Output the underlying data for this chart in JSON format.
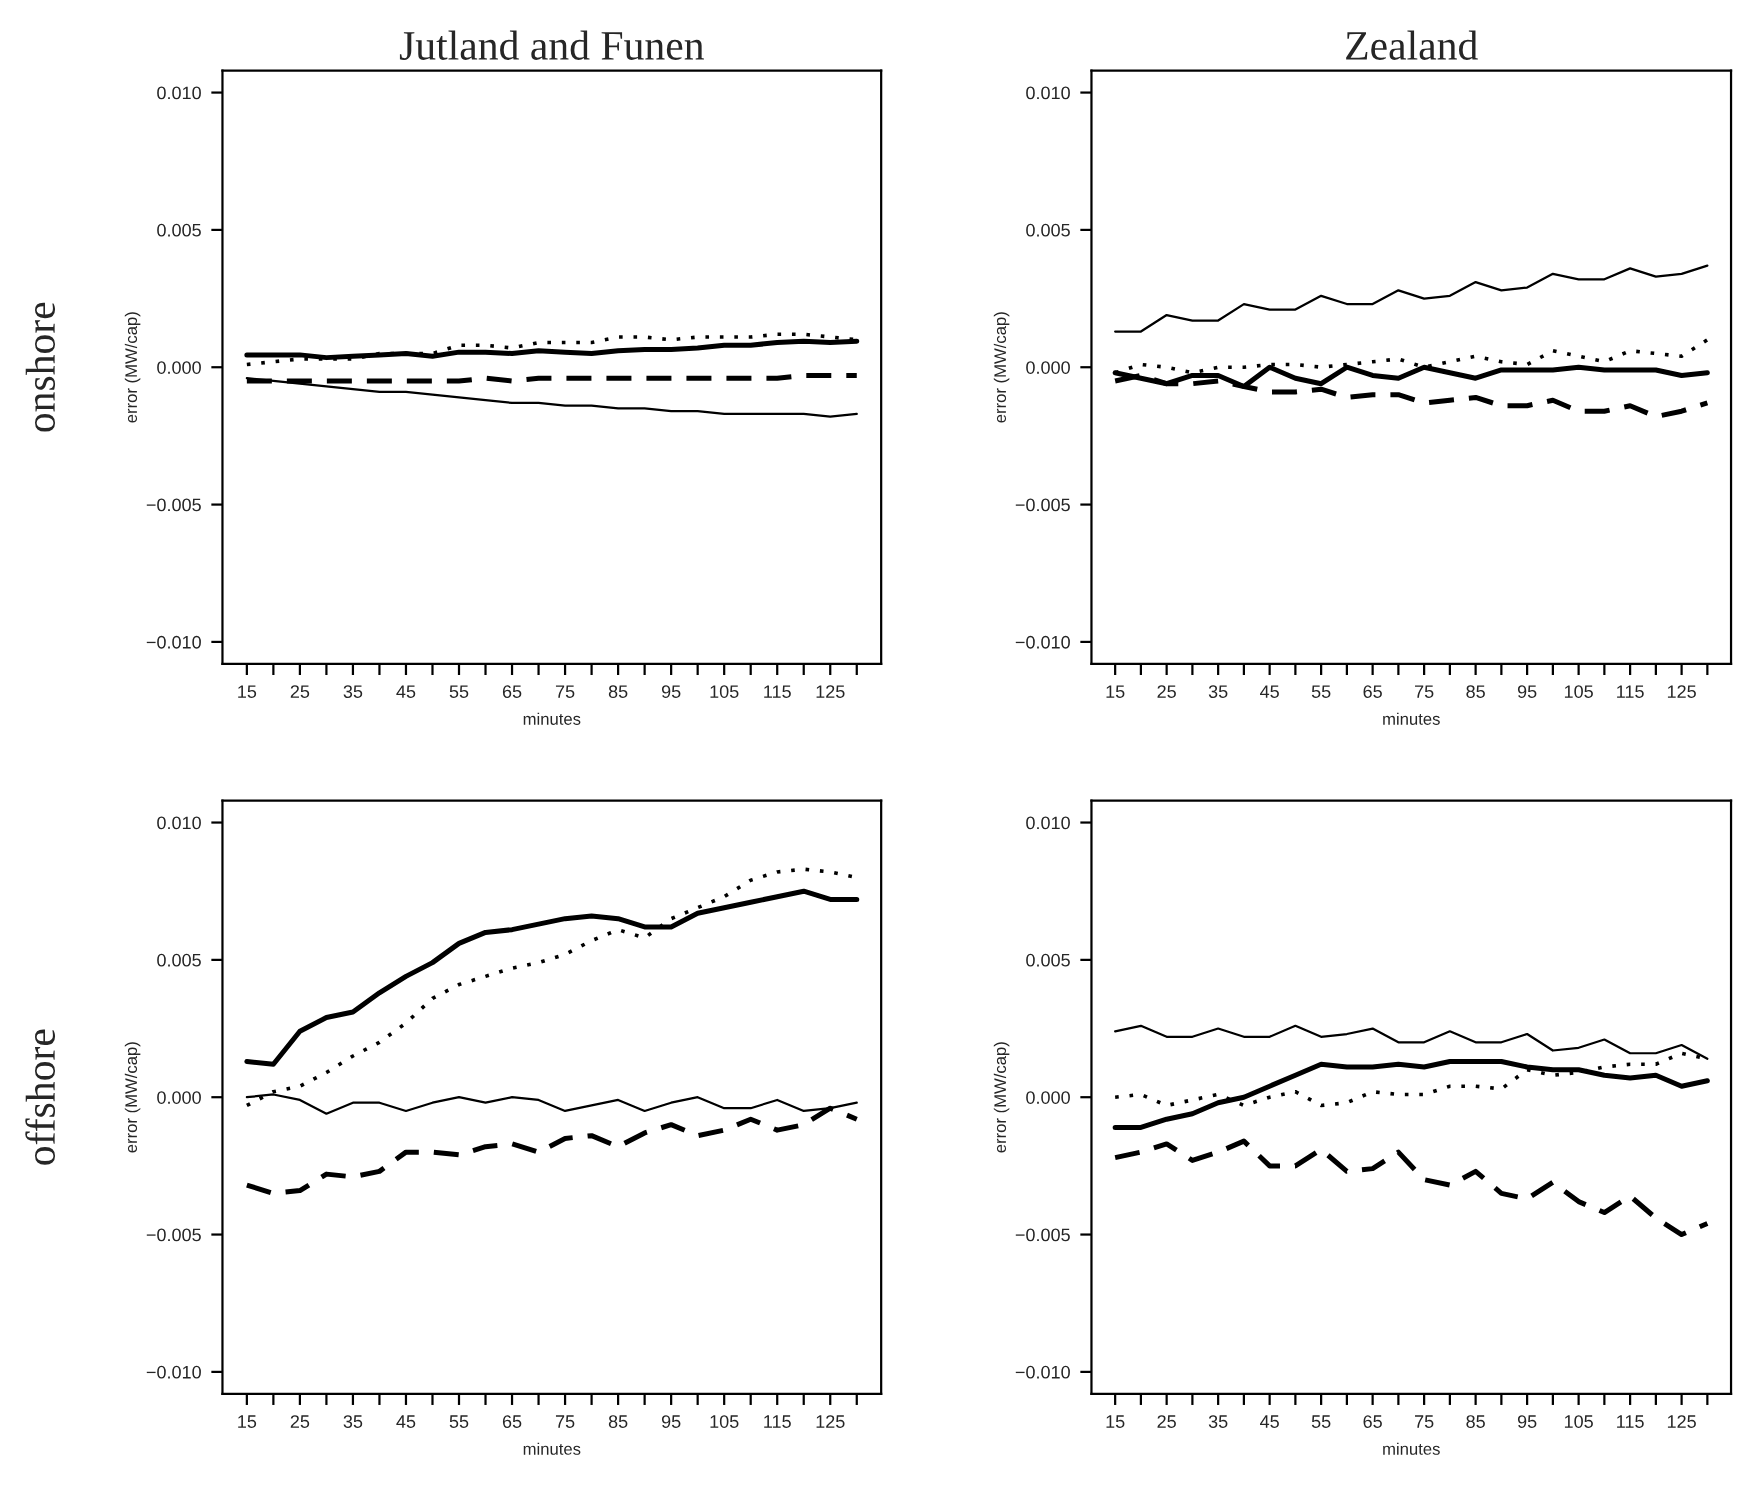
{
  "chart_data": [
    {
      "type": "line",
      "title": "Jutland and Funen",
      "annotations": [
        "onshore"
      ],
      "xlabel": "minutes",
      "ylabel": "error (MW/cap)",
      "x": [
        15,
        20,
        25,
        30,
        35,
        40,
        45,
        50,
        55,
        60,
        65,
        70,
        75,
        80,
        85,
        90,
        95,
        100,
        105,
        110,
        115,
        120,
        125,
        130
      ],
      "xlim": [
        10.4,
        134.6
      ],
      "ylim": [
        -0.0108,
        0.0108
      ],
      "xticks": [
        15,
        {
          "value": 20,
          "label": null
        },
        25,
        {
          "value": 30,
          "label": null
        },
        35,
        {
          "value": 40,
          "label": null
        },
        45,
        {
          "value": 50,
          "label": null
        },
        55,
        {
          "value": 60,
          "label": null
        },
        65,
        {
          "value": 70,
          "label": null
        },
        75,
        {
          "value": 80,
          "label": null
        },
        85,
        {
          "value": 90,
          "label": null
        },
        95,
        {
          "value": 100,
          "label": null
        },
        105,
        {
          "value": 110,
          "label": null
        },
        115,
        {
          "value": 120,
          "label": null
        },
        125,
        {
          "value": 130,
          "label": null
        }
      ],
      "yticks": [
        {
          "value": -0.01,
          "label": "−0.010"
        },
        {
          "value": -0.005,
          "label": "−0.005"
        },
        {
          "value": 0,
          "label": "0.000"
        },
        {
          "value": 0.005,
          "label": "0.005"
        },
        {
          "value": 0.01,
          "label": "0.010"
        }
      ],
      "grid": false,
      "series": [
        {
          "color": "#000000",
          "line_style": "solid",
          "values": [
            -0.0004,
            -0.0005,
            -0.0006,
            -0.0007,
            -0.0008,
            -0.0009,
            -0.0009,
            -0.001,
            -0.0011,
            -0.0012,
            -0.0013,
            -0.0013,
            -0.0014,
            -0.0014,
            -0.0015,
            -0.0015,
            -0.0016,
            -0.0016,
            -0.0017,
            -0.0017,
            -0.0017,
            -0.0017,
            -0.0018,
            -0.0017
          ]
        },
        {
          "color": "#000000",
          "line_style": "solid",
          "values": [
            0.00045,
            0.00045,
            0.00045,
            0.00035,
            0.0004,
            0.00045,
            0.0005,
            0.0004,
            0.00055,
            0.00055,
            0.0005,
            0.0006,
            0.00055,
            0.0005,
            0.0006,
            0.00065,
            0.00065,
            0.0007,
            0.0008,
            0.0008,
            0.0009,
            0.00095,
            0.0009,
            0.00095
          ]
        },
        {
          "color": "#000000",
          "line_style": "dashed",
          "values": [
            -0.0005,
            -0.0005,
            -0.0005,
            -0.0005,
            -0.0005,
            -0.0005,
            -0.0005,
            -0.0005,
            -0.0005,
            -0.0004,
            -0.0005,
            -0.0004,
            -0.0004,
            -0.0004,
            -0.0004,
            -0.0004,
            -0.0004,
            -0.0004,
            -0.0004,
            -0.0004,
            -0.0004,
            -0.0003,
            -0.0003,
            -0.0003
          ]
        },
        {
          "color": "#000000",
          "line_style": "dotted",
          "values": [
            0.0001,
            0.0002,
            0.0003,
            0.0003,
            0.0003,
            0.0005,
            0.0005,
            0.0005,
            0.0008,
            0.0008,
            0.0007,
            0.0009,
            0.0009,
            0.0009,
            0.0011,
            0.0011,
            0.001,
            0.0011,
            0.0011,
            0.0011,
            0.0012,
            0.0012,
            0.0011,
            0.001
          ]
        }
      ]
    },
    {
      "type": "line",
      "title": "Zealand",
      "xlabel": "minutes",
      "ylabel": "error (MW/cap)",
      "x": [
        15,
        20,
        25,
        30,
        35,
        40,
        45,
        50,
        55,
        60,
        65,
        70,
        75,
        80,
        85,
        90,
        95,
        100,
        105,
        110,
        115,
        120,
        125,
        130
      ],
      "xlim": [
        10.4,
        134.6
      ],
      "ylim": [
        -0.0108,
        0.0108
      ],
      "xticks": [
        15,
        {
          "value": 20,
          "label": null
        },
        25,
        {
          "value": 30,
          "label": null
        },
        35,
        {
          "value": 40,
          "label": null
        },
        45,
        {
          "value": 50,
          "label": null
        },
        55,
        {
          "value": 60,
          "label": null
        },
        65,
        {
          "value": 70,
          "label": null
        },
        75,
        {
          "value": 80,
          "label": null
        },
        85,
        {
          "value": 90,
          "label": null
        },
        95,
        {
          "value": 100,
          "label": null
        },
        105,
        {
          "value": 110,
          "label": null
        },
        115,
        {
          "value": 120,
          "label": null
        },
        125,
        {
          "value": 130,
          "label": null
        }
      ],
      "yticks": [
        {
          "value": -0.01,
          "label": "−0.010"
        },
        {
          "value": -0.005,
          "label": "−0.005"
        },
        {
          "value": 0,
          "label": "0.000"
        },
        {
          "value": 0.005,
          "label": "0.005"
        },
        {
          "value": 0.01,
          "label": "0.010"
        }
      ],
      "grid": false,
      "series": [
        {
          "color": "#000000",
          "line_style": "solid",
          "values": [
            0.0013,
            0.0013,
            0.0019,
            0.0017,
            0.0017,
            0.0023,
            0.0021,
            0.0021,
            0.0026,
            0.0023,
            0.0023,
            0.0028,
            0.0025,
            0.0026,
            0.0031,
            0.0028,
            0.0029,
            0.0034,
            0.0032,
            0.0032,
            0.0036,
            0.0033,
            0.0034,
            0.0037
          ]
        },
        {
          "color": "#000000",
          "line_style": "solid",
          "values": [
            -0.0002,
            -0.0004,
            -0.0006,
            -0.0003,
            -0.0003,
            -0.0007,
            0.0,
            -0.0004,
            -0.0006,
            0.0,
            -0.0003,
            -0.0004,
            0.0,
            -0.0002,
            -0.0004,
            -0.0001,
            -0.0001,
            -0.0001,
            0.0,
            -0.0001,
            -0.0001,
            -0.0001,
            -0.0003,
            -0.0002
          ]
        },
        {
          "color": "#000000",
          "line_style": "dashed",
          "values": [
            -0.0005,
            -0.0003,
            -0.0006,
            -0.0006,
            -0.0005,
            -0.0007,
            -0.0009,
            -0.0009,
            -0.0008,
            -0.0011,
            -0.001,
            -0.001,
            -0.0013,
            -0.0012,
            -0.0011,
            -0.0014,
            -0.0014,
            -0.0012,
            -0.0016,
            -0.0016,
            -0.0014,
            -0.0018,
            -0.0016,
            -0.0013
          ]
        },
        {
          "color": "#000000",
          "line_style": "dotted",
          "values": [
            -0.0002,
            0.0001,
            0.0,
            -0.0002,
            0.0,
            0.0,
            0.0001,
            0.0001,
            0.0,
            0.0001,
            0.0002,
            0.0003,
            0.0,
            0.0002,
            0.0004,
            0.0002,
            0.0001,
            0.0006,
            0.0004,
            0.0002,
            0.0006,
            0.0005,
            0.0004,
            0.001
          ]
        }
      ]
    },
    {
      "type": "line",
      "annotations": [
        "offshore"
      ],
      "xlabel": "minutes",
      "ylabel": "error (MW/cap)",
      "x": [
        15,
        20,
        25,
        30,
        35,
        40,
        45,
        50,
        55,
        60,
        65,
        70,
        75,
        80,
        85,
        90,
        95,
        100,
        105,
        110,
        115,
        120,
        125,
        130
      ],
      "xlim": [
        10.4,
        134.6
      ],
      "ylim": [
        -0.0108,
        0.0108
      ],
      "xticks": [
        15,
        {
          "value": 20,
          "label": null
        },
        25,
        {
          "value": 30,
          "label": null
        },
        35,
        {
          "value": 40,
          "label": null
        },
        45,
        {
          "value": 50,
          "label": null
        },
        55,
        {
          "value": 60,
          "label": null
        },
        65,
        {
          "value": 70,
          "label": null
        },
        75,
        {
          "value": 80,
          "label": null
        },
        85,
        {
          "value": 90,
          "label": null
        },
        95,
        {
          "value": 100,
          "label": null
        },
        105,
        {
          "value": 110,
          "label": null
        },
        115,
        {
          "value": 120,
          "label": null
        },
        125,
        {
          "value": 130,
          "label": null
        }
      ],
      "yticks": [
        {
          "value": -0.01,
          "label": "−0.010"
        },
        {
          "value": -0.005,
          "label": "−0.005"
        },
        {
          "value": 0,
          "label": "0.000"
        },
        {
          "value": 0.005,
          "label": "0.005"
        },
        {
          "value": 0.01,
          "label": "0.010"
        }
      ],
      "grid": false,
      "series": [
        {
          "color": "#000000",
          "line_style": "solid",
          "values": [
            0.0,
            0.0001,
            -0.0001,
            -0.0006,
            -0.0002,
            -0.0002,
            -0.0005,
            -0.0002,
            0.0,
            -0.0002,
            0.0,
            -0.0001,
            -0.0005,
            -0.0003,
            -0.0001,
            -0.0005,
            -0.0002,
            0.0,
            -0.0004,
            -0.0004,
            -0.0001,
            -0.0005,
            -0.0004,
            -0.0002
          ]
        },
        {
          "color": "#000000",
          "line_style": "solid",
          "values": [
            0.0013,
            0.0012,
            0.0024,
            0.0029,
            0.0031,
            0.0038,
            0.0044,
            0.0049,
            0.0056,
            0.006,
            0.0061,
            0.0063,
            0.0065,
            0.0066,
            0.0065,
            0.0062,
            0.0062,
            0.0067,
            0.0069,
            0.0071,
            0.0073,
            0.0075,
            0.0072,
            0.0072
          ]
        },
        {
          "color": "#000000",
          "line_style": "dashed",
          "values": [
            -0.0032,
            -0.0035,
            -0.0034,
            -0.0028,
            -0.0029,
            -0.0027,
            -0.002,
            -0.002,
            -0.0021,
            -0.0018,
            -0.0017,
            -0.002,
            -0.0015,
            -0.0014,
            -0.0018,
            -0.0013,
            -0.001,
            -0.0014,
            -0.0012,
            -0.0008,
            -0.0012,
            -0.001,
            -0.0004,
            -0.0008
          ]
        },
        {
          "color": "#000000",
          "line_style": "dotted",
          "values": [
            -0.0003,
            0.0002,
            0.0004,
            0.0009,
            0.0015,
            0.002,
            0.0027,
            0.0036,
            0.0041,
            0.0044,
            0.0047,
            0.0049,
            0.0052,
            0.0057,
            0.0061,
            0.0058,
            0.0065,
            0.0069,
            0.0073,
            0.0079,
            0.0082,
            0.0083,
            0.0082,
            0.008
          ]
        }
      ]
    },
    {
      "type": "line",
      "xlabel": "minutes",
      "ylabel": "error (MW/cap)",
      "x": [
        15,
        20,
        25,
        30,
        35,
        40,
        45,
        50,
        55,
        60,
        65,
        70,
        75,
        80,
        85,
        90,
        95,
        100,
        105,
        110,
        115,
        120,
        125,
        130
      ],
      "xlim": [
        10.4,
        134.6
      ],
      "ylim": [
        -0.0108,
        0.0108
      ],
      "xticks": [
        15,
        {
          "value": 20,
          "label": null
        },
        25,
        {
          "value": 30,
          "label": null
        },
        35,
        {
          "value": 40,
          "label": null
        },
        45,
        {
          "value": 50,
          "label": null
        },
        55,
        {
          "value": 60,
          "label": null
        },
        65,
        {
          "value": 70,
          "label": null
        },
        75,
        {
          "value": 80,
          "label": null
        },
        85,
        {
          "value": 90,
          "label": null
        },
        95,
        {
          "value": 100,
          "label": null
        },
        105,
        {
          "value": 110,
          "label": null
        },
        115,
        {
          "value": 120,
          "label": null
        },
        125,
        {
          "value": 130,
          "label": null
        }
      ],
      "yticks": [
        {
          "value": -0.01,
          "label": "−0.010"
        },
        {
          "value": -0.005,
          "label": "−0.005"
        },
        {
          "value": 0,
          "label": "0.000"
        },
        {
          "value": 0.005,
          "label": "0.005"
        },
        {
          "value": 0.01,
          "label": "0.010"
        }
      ],
      "grid": false,
      "series": [
        {
          "color": "#000000",
          "line_style": "solid",
          "values": [
            0.0024,
            0.0026,
            0.0022,
            0.0022,
            0.0025,
            0.0022,
            0.0022,
            0.0026,
            0.0022,
            0.0023,
            0.0025,
            0.002,
            0.002,
            0.0024,
            0.002,
            0.002,
            0.0023,
            0.0017,
            0.0018,
            0.0021,
            0.0016,
            0.0016,
            0.0019,
            0.0014
          ]
        },
        {
          "color": "#000000",
          "line_style": "solid",
          "values": [
            -0.0011,
            -0.0011,
            -0.0008,
            -0.0006,
            -0.0002,
            0.0,
            0.0004,
            0.0008,
            0.0012,
            0.0011,
            0.0011,
            0.0012,
            0.0011,
            0.0013,
            0.0013,
            0.0013,
            0.0011,
            0.001,
            0.001,
            0.0008,
            0.0007,
            0.0008,
            0.0004,
            0.0006
          ]
        },
        {
          "color": "#000000",
          "line_style": "dashed",
          "values": [
            -0.0022,
            -0.002,
            -0.0017,
            -0.0023,
            -0.002,
            -0.0016,
            -0.0025,
            -0.0025,
            -0.0019,
            -0.0027,
            -0.0026,
            -0.002,
            -0.003,
            -0.0032,
            -0.0027,
            -0.0035,
            -0.0037,
            -0.0031,
            -0.0038,
            -0.0042,
            -0.0036,
            -0.0044,
            -0.005,
            -0.0046
          ]
        },
        {
          "color": "#000000",
          "line_style": "dotted",
          "values": [
            0.0,
            0.0001,
            -0.0003,
            -0.0001,
            0.0001,
            -0.0003,
            0.0,
            0.0002,
            -0.0003,
            -0.0002,
            0.0002,
            0.0001,
            0.0001,
            0.0004,
            0.0004,
            0.0003,
            0.001,
            0.0008,
            0.0009,
            0.0011,
            0.0012,
            0.0012,
            0.0016,
            0.0014
          ]
        }
      ]
    }
  ]
}
